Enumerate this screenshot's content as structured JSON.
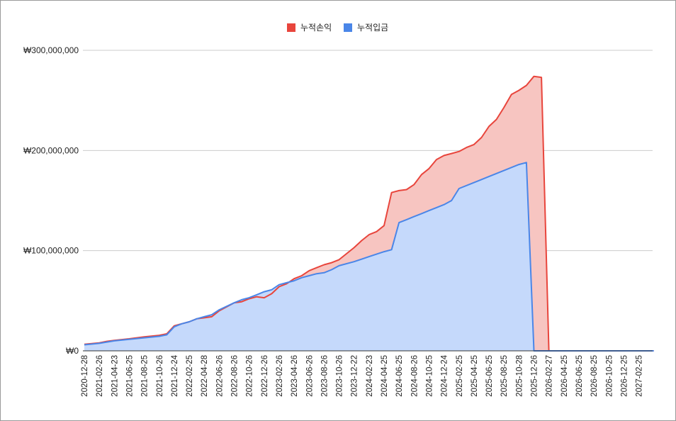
{
  "chart_data": {
    "type": "area",
    "title": "",
    "xlabel": "",
    "ylabel": "",
    "ylim": [
      0,
      300000000
    ],
    "y_ticks": [
      0,
      100000000,
      200000000,
      300000000
    ],
    "y_tick_labels": [
      "₩0",
      "₩100,000,000",
      "₩200,000,000",
      "₩300,000,000"
    ],
    "grid": true,
    "legend_position": "top",
    "x_tick_labels": [
      "2020-12-28",
      "2021-02-26",
      "2021-04-23",
      "2021-06-25",
      "2021-08-25",
      "2021-10-26",
      "2021-12-24",
      "2022-02-25",
      "2022-04-28",
      "2022-06-26",
      "2022-08-26",
      "2022-10-26",
      "2022-12-26",
      "2023-02-26",
      "2023-04-26",
      "2023-06-26",
      "2023-08-26",
      "2023-10-26",
      "2023-12-22",
      "2024-02-23",
      "2024-04-25",
      "2024-06-25",
      "2024-08-26",
      "2024-10-25",
      "2024-12-24",
      "2025-02-25",
      "2025-04-25",
      "2025-06-25",
      "2025-08-25",
      "2025-10-28",
      "2025-12-26",
      "2026-02-27",
      "2026-04-25",
      "2026-06-25",
      "2026-08-25",
      "2026-10-25",
      "2026-12-25",
      "2027-02-25"
    ],
    "series": [
      {
        "name": "누적손익",
        "color": "#e8453c",
        "fill": "#f7c5c1",
        "points": [
          [
            0,
            6500000.0
          ],
          [
            1,
            8000000.0
          ],
          [
            1.5,
            9500000.0
          ],
          [
            2,
            10500000.0
          ],
          [
            3,
            12000000.0
          ],
          [
            4,
            14000000.0
          ],
          [
            5,
            15500000.0
          ],
          [
            5.5,
            17000000.0
          ],
          [
            6,
            25000000.0
          ],
          [
            6.5,
            27000000.0
          ],
          [
            7,
            29000000.0
          ],
          [
            7.5,
            32000000.0
          ],
          [
            8,
            33000000.0
          ],
          [
            8.5,
            34000000.0
          ],
          [
            9,
            40000000.0
          ],
          [
            10,
            48000000.0
          ],
          [
            10.5,
            49000000.0
          ],
          [
            11,
            52000000.0
          ],
          [
            11.5,
            54000000.0
          ],
          [
            12,
            53000000.0
          ],
          [
            12.5,
            57000000.0
          ],
          [
            13,
            64000000.0
          ],
          [
            13.5,
            67000000.0
          ],
          [
            14,
            72000000.0
          ],
          [
            14.5,
            75000000.0
          ],
          [
            15,
            80000000.0
          ],
          [
            15.5,
            83000000.0
          ],
          [
            16,
            86000000.0
          ],
          [
            16.5,
            88000000.0
          ],
          [
            17,
            91000000.0
          ],
          [
            17.5,
            97000000.0
          ],
          [
            18,
            103000000.0
          ],
          [
            18.5,
            110000000.0
          ],
          [
            19,
            116000000.0
          ],
          [
            19.5,
            119000000.0
          ],
          [
            20,
            125000000.0
          ],
          [
            20.5,
            158000000.0
          ],
          [
            21,
            160000000.0
          ],
          [
            21.5,
            161000000.0
          ],
          [
            22,
            166000000.0
          ],
          [
            22.5,
            176000000.0
          ],
          [
            23,
            182000000.0
          ],
          [
            23.5,
            191000000.0
          ],
          [
            24,
            195000000.0
          ],
          [
            24.5,
            197000000.0
          ],
          [
            25,
            199000000.0
          ],
          [
            25.5,
            203000000.0
          ],
          [
            26,
            206000000.0
          ],
          [
            26.5,
            213000000.0
          ],
          [
            27,
            224000000.0
          ],
          [
            27.5,
            231000000.0
          ],
          [
            28,
            243000000.0
          ],
          [
            28.5,
            256000000.0
          ],
          [
            29,
            260000000.0
          ],
          [
            29.5,
            265000000.0
          ],
          [
            30,
            274000000.0
          ],
          [
            30.5,
            273000000.0
          ],
          [
            31,
            0
          ],
          [
            38,
            0
          ]
        ]
      },
      {
        "name": "누적입금",
        "color": "#4a86e8",
        "fill": "#c5d9fb",
        "points": [
          [
            0,
            6000000.0
          ],
          [
            1,
            7500000.0
          ],
          [
            2,
            10000000.0
          ],
          [
            3,
            11500000.0
          ],
          [
            4,
            13000000.0
          ],
          [
            5,
            14500000.0
          ],
          [
            5.5,
            16000000.0
          ],
          [
            6,
            24000000.0
          ],
          [
            6.5,
            27000000.0
          ],
          [
            7,
            29000000.0
          ],
          [
            7.5,
            32000000.0
          ],
          [
            8,
            34000000.0
          ],
          [
            8.5,
            36000000.0
          ],
          [
            9,
            41000000.0
          ],
          [
            10,
            48000000.0
          ],
          [
            10.5,
            51000000.0
          ],
          [
            11,
            53000000.0
          ],
          [
            11.5,
            56000000.0
          ],
          [
            12,
            59000000.0
          ],
          [
            12.5,
            61000000.0
          ],
          [
            13,
            66000000.0
          ],
          [
            13.5,
            68000000.0
          ],
          [
            14,
            70000000.0
          ],
          [
            14.5,
            73000000.0
          ],
          [
            15,
            75000000.0
          ],
          [
            15.5,
            77000000.0
          ],
          [
            16,
            78000000.0
          ],
          [
            16.5,
            81000000.0
          ],
          [
            17,
            85000000.0
          ],
          [
            18,
            89000000.0
          ],
          [
            19,
            94000000.0
          ],
          [
            20,
            99000000.0
          ],
          [
            20.5,
            101000000.0
          ],
          [
            21,
            128000000.0
          ],
          [
            21.5,
            131000000.0
          ],
          [
            22,
            134000000.0
          ],
          [
            22.5,
            137000000.0
          ],
          [
            23,
            140000000.0
          ],
          [
            23.5,
            143000000.0
          ],
          [
            24,
            146000000.0
          ],
          [
            24.5,
            150000000.0
          ],
          [
            25,
            162000000.0
          ],
          [
            26,
            168000000.0
          ],
          [
            27,
            174000000.0
          ],
          [
            28,
            180000000.0
          ],
          [
            29,
            186000000.0
          ],
          [
            29.5,
            188000000.0
          ],
          [
            30,
            0
          ],
          [
            38,
            0
          ]
        ]
      }
    ]
  }
}
